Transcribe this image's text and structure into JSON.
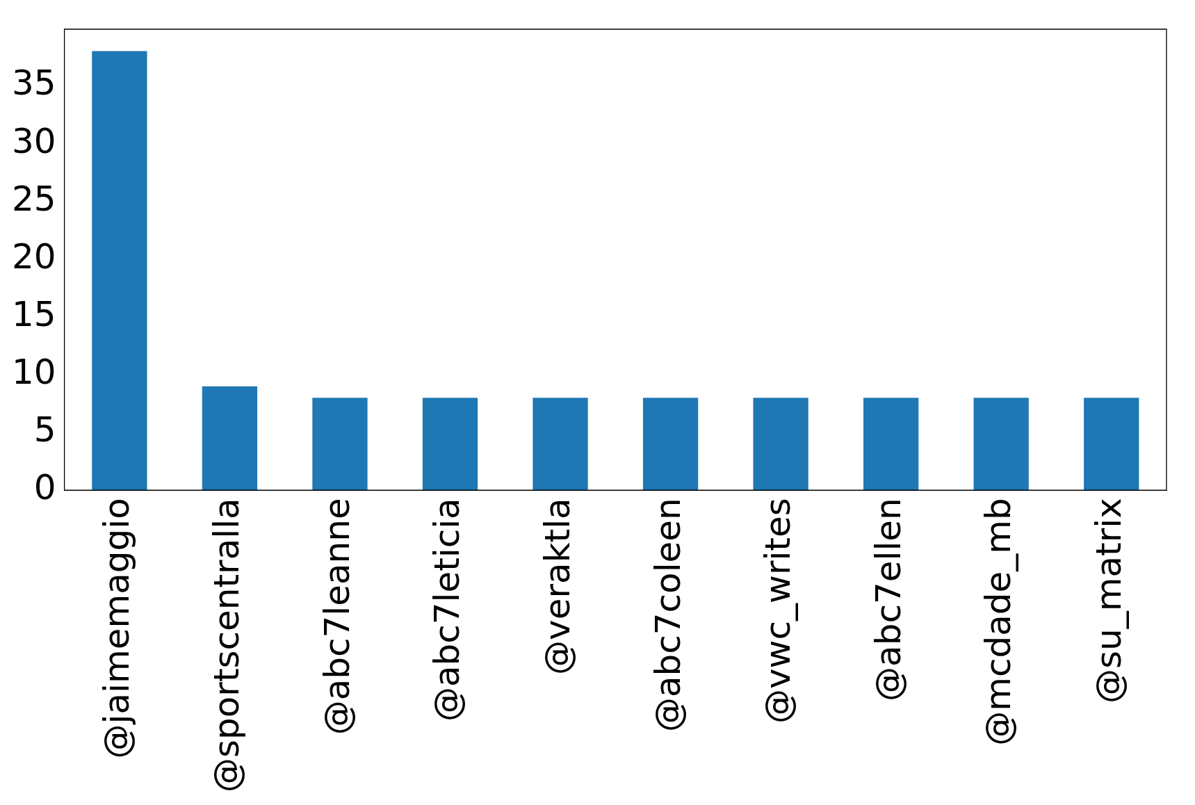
{
  "chart_data": {
    "type": "bar",
    "categories": [
      "@jaimemaggio",
      "@sportscentralla",
      "@abc7leanne",
      "@abc7leticia",
      "@veraktla",
      "@abc7coleen",
      "@vwc_writes",
      "@abc7ellen",
      "@mcdade_mb",
      "@su_matrix"
    ],
    "values": [
      38,
      9,
      8,
      8,
      8,
      8,
      8,
      8,
      8,
      8
    ],
    "color": "#1f77b4",
    "ylim": [
      0,
      39.9
    ],
    "yticks": [
      0,
      5,
      10,
      15,
      20,
      25,
      30,
      35
    ],
    "grid": false,
    "legend": false
  }
}
